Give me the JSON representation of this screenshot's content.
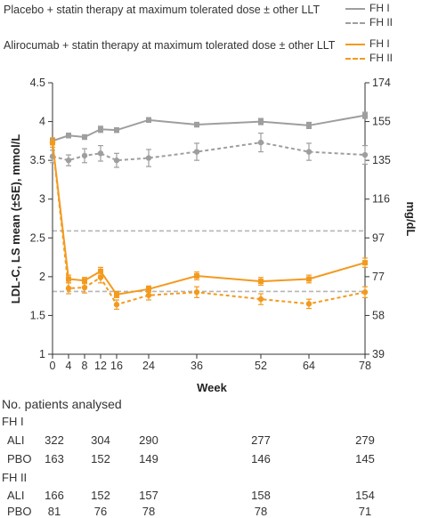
{
  "legend": {
    "placebo_title": "Placebo + statin therapy at maximum tolerated dose ± other LLT",
    "alirocumab_title": "Alirocumab + statin therapy at maximum tolerated dose ± other LLT",
    "fh1": "FH I",
    "fh2": "FH II"
  },
  "table": {
    "heading": "No. patients analysed",
    "groups": [
      {
        "name": "FH I",
        "rows": [
          {
            "label": "ALI",
            "values": [
              "322",
              "304",
              "290",
              "277",
              "279"
            ]
          },
          {
            "label": "PBO",
            "values": [
              "163",
              "152",
              "149",
              "146",
              "145"
            ]
          }
        ]
      },
      {
        "name": "FH II",
        "rows": [
          {
            "label": "ALI",
            "values": [
              "166",
              "152",
              "157",
              "158",
              "154"
            ]
          },
          {
            "label": "PBO",
            "values": [
              "81",
              "76",
              "78",
              "78",
              "71"
            ]
          }
        ]
      }
    ],
    "weeks": [
      0,
      12,
      24,
      52,
      78
    ]
  },
  "colors": {
    "placebo": "#9e9e9e",
    "alirocumab": "#f39a1e",
    "axis": "#333333",
    "ref": "#b5b5b5"
  },
  "chart_data": {
    "type": "line",
    "xlabel": "Week",
    "ylabel": "LDL-C, LS mean (±SE), mmol/L",
    "y2label": "mg/dL",
    "x_ticks": [
      0,
      4,
      8,
      12,
      16,
      24,
      36,
      52,
      64,
      78
    ],
    "y_ticks": [
      1,
      1.5,
      2,
      2.5,
      3,
      3.5,
      4,
      4.5
    ],
    "y_tick_labels": [
      "1",
      "1.5",
      "2",
      "2.5",
      "3",
      "3.5",
      "4",
      "4.5"
    ],
    "y2_ticks": [
      "39",
      "58",
      "77",
      "97",
      "116",
      "135",
      "155",
      "174"
    ],
    "xlim": [
      0,
      78
    ],
    "ylim": [
      1,
      4.5
    ],
    "reference_lines": [
      2.59,
      1.81
    ],
    "series": [
      {
        "name": "FH I",
        "arm": "Placebo",
        "dash": false,
        "x": [
          0,
          4,
          8,
          12,
          16,
          24,
          36,
          52,
          64,
          78
        ],
        "y": [
          3.75,
          3.82,
          3.8,
          3.9,
          3.89,
          4.02,
          3.96,
          4.0,
          3.95,
          4.08
        ],
        "se": [
          0.03,
          0.03,
          0.03,
          0.04,
          0.03,
          0.03,
          0.03,
          0.04,
          0.04,
          0.04
        ]
      },
      {
        "name": "FH II",
        "arm": "Placebo",
        "dash": true,
        "x": [
          0,
          4,
          8,
          12,
          16,
          24,
          36,
          52,
          64,
          78
        ],
        "y": [
          3.55,
          3.5,
          3.56,
          3.59,
          3.5,
          3.53,
          3.61,
          3.73,
          3.61,
          3.57
        ],
        "se": [
          0.08,
          0.07,
          0.09,
          0.1,
          0.09,
          0.11,
          0.11,
          0.12,
          0.11,
          0.12
        ]
      },
      {
        "name": "FH I",
        "arm": "Alirocumab",
        "dash": false,
        "x": [
          0,
          4,
          8,
          12,
          16,
          24,
          36,
          52,
          64,
          78
        ],
        "y": [
          3.73,
          1.97,
          1.95,
          2.07,
          1.77,
          1.84,
          2.01,
          1.94,
          1.97,
          2.18
        ],
        "se": [
          0.03,
          0.05,
          0.04,
          0.05,
          0.04,
          0.04,
          0.05,
          0.05,
          0.05,
          0.06
        ]
      },
      {
        "name": "FH II",
        "arm": "Alirocumab",
        "dash": true,
        "x": [
          0,
          4,
          8,
          12,
          16,
          24,
          36,
          52,
          64,
          78
        ],
        "y": [
          3.73,
          1.85,
          1.86,
          1.99,
          1.64,
          1.76,
          1.8,
          1.71,
          1.65,
          1.8
        ],
        "se": [
          0.06,
          0.07,
          0.07,
          0.07,
          0.06,
          0.06,
          0.07,
          0.07,
          0.06,
          0.07
        ]
      }
    ]
  }
}
